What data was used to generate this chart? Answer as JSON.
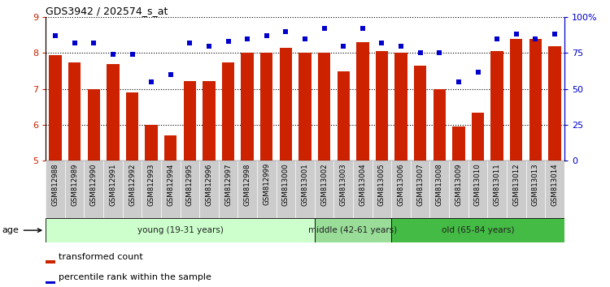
{
  "title": "GDS3942 / 202574_s_at",
  "categories": [
    "GSM812988",
    "GSM812989",
    "GSM812990",
    "GSM812991",
    "GSM812992",
    "GSM812993",
    "GSM812994",
    "GSM812995",
    "GSM812996",
    "GSM812997",
    "GSM812998",
    "GSM812999",
    "GSM813000",
    "GSM813001",
    "GSM813002",
    "GSM813003",
    "GSM813004",
    "GSM813005",
    "GSM813006",
    "GSM813007",
    "GSM813008",
    "GSM813009",
    "GSM813010",
    "GSM813011",
    "GSM813012",
    "GSM813013",
    "GSM813014"
  ],
  "bar_values": [
    7.95,
    7.75,
    7.0,
    7.7,
    6.9,
    6.0,
    5.7,
    7.22,
    7.22,
    7.75,
    8.0,
    8.0,
    8.15,
    8.0,
    8.0,
    7.5,
    8.3,
    8.05,
    8.0,
    7.65,
    7.0,
    5.95,
    6.35,
    8.05,
    8.4,
    8.4,
    8.2
  ],
  "percentile_values": [
    87,
    82,
    82,
    74,
    74,
    55,
    60,
    82,
    80,
    83,
    85,
    87,
    90,
    85,
    92,
    80,
    92,
    82,
    80,
    75,
    75,
    55,
    62,
    85,
    88,
    85,
    88
  ],
  "bar_color": "#cc2200",
  "dot_color": "#0000cc",
  "ylim_left": [
    5,
    9
  ],
  "ylim_right": [
    0,
    100
  ],
  "yticks_left": [
    5,
    6,
    7,
    8,
    9
  ],
  "yticks_right": [
    0,
    25,
    50,
    75,
    100
  ],
  "ytick_labels_right": [
    "0",
    "25",
    "50",
    "75",
    "100%"
  ],
  "groups": [
    {
      "label": "young (19-31 years)",
      "start": 0,
      "end": 14,
      "color": "#ccffcc"
    },
    {
      "label": "middle (42-61 years)",
      "start": 14,
      "end": 18,
      "color": "#99dd99"
    },
    {
      "label": "old (65-84 years)",
      "start": 18,
      "end": 27,
      "color": "#44bb44"
    }
  ],
  "age_label": "age",
  "legend_bar_label": "transformed count",
  "legend_dot_label": "percentile rank within the sample",
  "background_color": "#ffffff",
  "plot_bg_color": "#ffffff",
  "grid_color": "#000000",
  "xtick_bg_color": "#cccccc"
}
